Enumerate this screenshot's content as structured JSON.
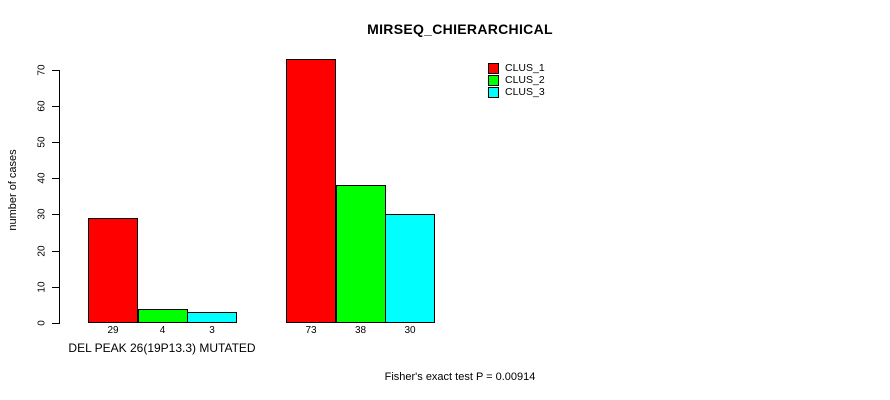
{
  "chart_data": {
    "type": "bar",
    "title": "MIRSEQ_CHIERARCHICAL",
    "ylabel": "number of cases",
    "xlabel": "",
    "ylim": [
      0,
      73
    ],
    "yticks": [
      0,
      10,
      20,
      30,
      40,
      50,
      60,
      70
    ],
    "grid": false,
    "legend_position": "top-right",
    "categories": [
      "DEL PEAK 26(19P13.3) MUTATED",
      ""
    ],
    "group_label": "DEL PEAK 26(19P13.3) MUTATED",
    "series": [
      {
        "name": "CLUS_1",
        "color": "#ff0000",
        "values": [
          29,
          73
        ]
      },
      {
        "name": "CLUS_2",
        "color": "#00ff00",
        "values": [
          4,
          38
        ]
      },
      {
        "name": "CLUS_3",
        "color": "#00ffff",
        "values": [
          3,
          30
        ]
      }
    ],
    "bar_value_labels": [
      [
        29,
        4,
        3
      ],
      [
        73,
        38,
        30
      ]
    ],
    "bar_border_color": "#000000",
    "annotation": "Fisher's exact test P = 0.00914"
  }
}
